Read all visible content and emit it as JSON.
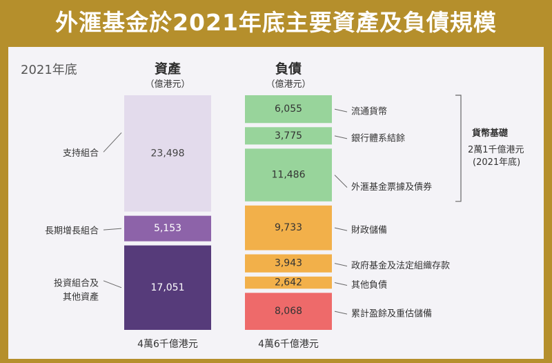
{
  "title": "外滙基金於2021年底主要資產及負債規模",
  "year_label": "2021年底",
  "assets": {
    "header": "資產",
    "unit": "（億港元）",
    "total": "4萬6千億港元",
    "items": [
      {
        "label": "支持組合",
        "value": "23,498",
        "color": "#e3dbec"
      },
      {
        "label": "長期增長組合",
        "value": "5,153",
        "color": "#8d63a9"
      },
      {
        "label": "投資組合及\n其他資產",
        "value": "17,051",
        "color": "#563b7a"
      }
    ]
  },
  "liabilities": {
    "header": "負債",
    "unit": "（億港元）",
    "total": "4萬6千億港元",
    "items": [
      {
        "label": "流通貨幣",
        "value": "6,055",
        "color": "#98d49b"
      },
      {
        "label": "銀行體系結餘",
        "value": "3,775",
        "color": "#98d49b"
      },
      {
        "label": "外滙基金票據及債券",
        "value": "11,486",
        "color": "#98d49b"
      },
      {
        "label": "財政儲備",
        "value": "9,733",
        "color": "#f2b04a"
      },
      {
        "label": "政府基金及法定組織存款",
        "value": "3,943",
        "color": "#f2b04a"
      },
      {
        "label": "其他負債",
        "value": "2,642",
        "color": "#f2b04a"
      },
      {
        "label": "累計盈餘及重估儲備",
        "value": "8,068",
        "color": "#ee6a6a"
      }
    ]
  },
  "monetary_base": {
    "label": "貨幣基礎",
    "value": "2萬1千億港元",
    "note": "(2021年底)"
  },
  "chart_data": {
    "type": "bar",
    "title": "外滙基金於2021年底主要資產及負債規模",
    "unit": "億港元",
    "categories": [
      "資產",
      "負債"
    ],
    "series": [
      {
        "name": "支持組合",
        "values": [
          23498,
          null
        ]
      },
      {
        "name": "長期增長組合",
        "values": [
          5153,
          null
        ]
      },
      {
        "name": "投資組合及其他資產",
        "values": [
          17051,
          null
        ]
      },
      {
        "name": "流通貨幣",
        "values": [
          null,
          6055
        ]
      },
      {
        "name": "銀行體系結餘",
        "values": [
          null,
          3775
        ]
      },
      {
        "name": "外滙基金票據及債券",
        "values": [
          null,
          11486
        ]
      },
      {
        "name": "財政儲備",
        "values": [
          null,
          9733
        ]
      },
      {
        "name": "政府基金及法定組織存款",
        "values": [
          null,
          3943
        ]
      },
      {
        "name": "其他負債",
        "values": [
          null,
          2642
        ]
      },
      {
        "name": "累計盈餘及重估儲備",
        "values": [
          null,
          8068
        ]
      }
    ]
  }
}
